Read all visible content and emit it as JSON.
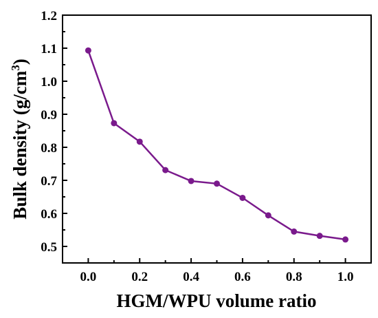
{
  "chart_data": {
    "type": "line",
    "xlabel": "HGM/WPU volume ratio",
    "ylabel": "Bulk density (g/cm",
    "ylabel_superscript": "3",
    "ylabel_suffix": ")",
    "xlim": [
      -0.1,
      1.1
    ],
    "ylim": [
      0.45,
      1.2
    ],
    "x_ticks": [
      "0.0",
      "0.2",
      "0.4",
      "0.6",
      "0.8",
      "1.0"
    ],
    "y_ticks": [
      "0.5",
      "0.6",
      "0.7",
      "0.8",
      "0.9",
      "1.0",
      "1.1",
      "1.2"
    ],
    "grid": false,
    "series": [
      {
        "color": "#7a1a8c",
        "x": [
          0.0,
          0.1,
          0.2,
          0.3,
          0.4,
          0.5,
          0.6,
          0.7,
          0.8,
          0.9,
          1.0
        ],
        "y": [
          1.093,
          0.873,
          0.817,
          0.731,
          0.698,
          0.69,
          0.647,
          0.594,
          0.545,
          0.532,
          0.521
        ]
      }
    ]
  }
}
